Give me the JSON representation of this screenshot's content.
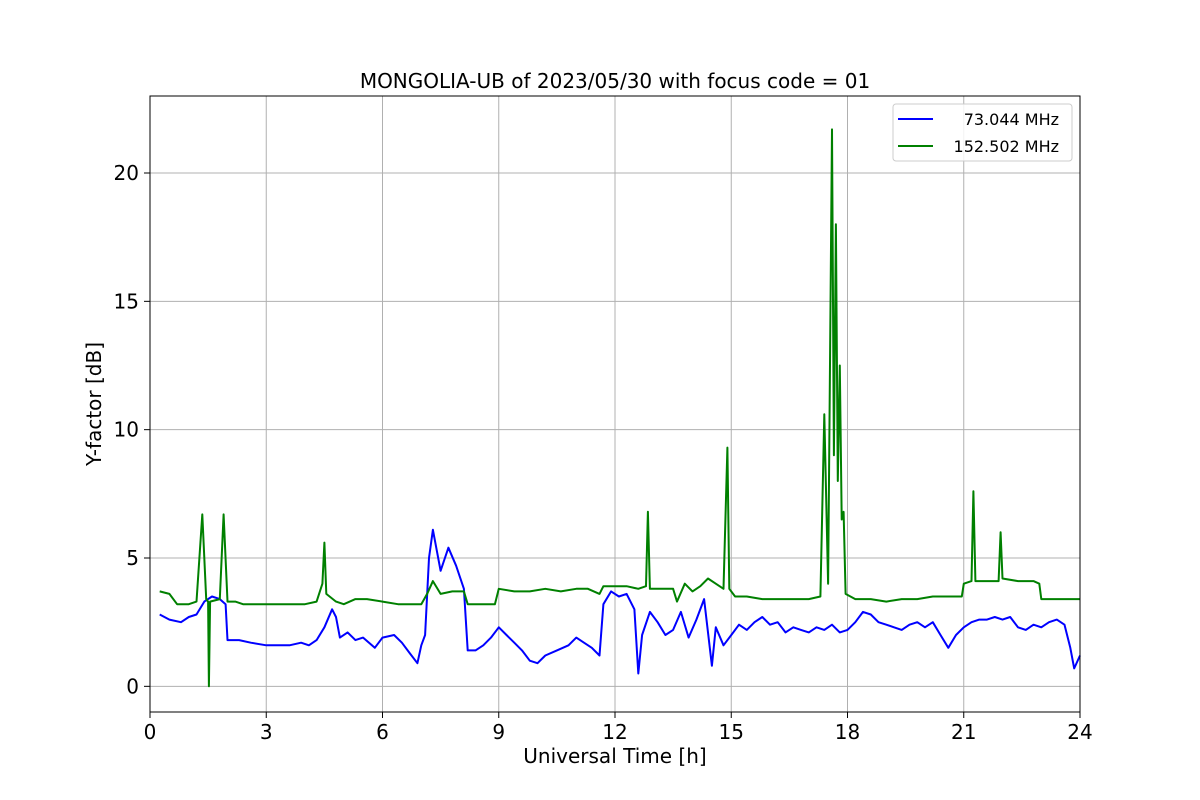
{
  "chart_data": {
    "type": "line",
    "title": "MONGOLIA-UB of 2023/05/30 with focus code = 01",
    "xlabel": "Universal Time [h]",
    "ylabel": "Y-factor [dB]",
    "xlim": [
      0,
      24
    ],
    "ylim": [
      -1,
      23
    ],
    "xticks": [
      0,
      3,
      6,
      9,
      12,
      15,
      18,
      21,
      24
    ],
    "yticks": [
      0,
      5,
      10,
      15,
      20
    ],
    "grid": true,
    "legend_position": "top-right",
    "series": [
      {
        "name": "73.044 MHz",
        "color": "#0000ff",
        "points": [
          [
            0.25,
            2.8
          ],
          [
            0.5,
            2.6
          ],
          [
            0.8,
            2.5
          ],
          [
            1.0,
            2.7
          ],
          [
            1.2,
            2.8
          ],
          [
            1.4,
            3.3
          ],
          [
            1.6,
            3.5
          ],
          [
            1.8,
            3.4
          ],
          [
            1.95,
            3.2
          ],
          [
            2.0,
            1.8
          ],
          [
            2.3,
            1.8
          ],
          [
            2.6,
            1.7
          ],
          [
            3.0,
            1.6
          ],
          [
            3.3,
            1.6
          ],
          [
            3.6,
            1.6
          ],
          [
            3.9,
            1.7
          ],
          [
            4.1,
            1.6
          ],
          [
            4.3,
            1.8
          ],
          [
            4.5,
            2.3
          ],
          [
            4.7,
            3.0
          ],
          [
            4.8,
            2.7
          ],
          [
            4.9,
            1.9
          ],
          [
            5.1,
            2.1
          ],
          [
            5.3,
            1.8
          ],
          [
            5.5,
            1.9
          ],
          [
            5.8,
            1.5
          ],
          [
            6.0,
            1.9
          ],
          [
            6.3,
            2.0
          ],
          [
            6.5,
            1.7
          ],
          [
            6.7,
            1.3
          ],
          [
            6.9,
            0.9
          ],
          [
            7.0,
            1.6
          ],
          [
            7.1,
            2.0
          ],
          [
            7.2,
            5.0
          ],
          [
            7.3,
            6.1
          ],
          [
            7.5,
            4.5
          ],
          [
            7.7,
            5.4
          ],
          [
            7.9,
            4.7
          ],
          [
            8.1,
            3.8
          ],
          [
            8.2,
            1.4
          ],
          [
            8.4,
            1.4
          ],
          [
            8.6,
            1.6
          ],
          [
            8.8,
            1.9
          ],
          [
            9.0,
            2.3
          ],
          [
            9.2,
            2.0
          ],
          [
            9.4,
            1.7
          ],
          [
            9.6,
            1.4
          ],
          [
            9.8,
            1.0
          ],
          [
            10.0,
            0.9
          ],
          [
            10.2,
            1.2
          ],
          [
            10.5,
            1.4
          ],
          [
            10.8,
            1.6
          ],
          [
            11.0,
            1.9
          ],
          [
            11.2,
            1.7
          ],
          [
            11.4,
            1.5
          ],
          [
            11.6,
            1.2
          ],
          [
            11.7,
            3.2
          ],
          [
            11.9,
            3.7
          ],
          [
            12.1,
            3.5
          ],
          [
            12.3,
            3.6
          ],
          [
            12.5,
            3.0
          ],
          [
            12.6,
            0.5
          ],
          [
            12.7,
            2.0
          ],
          [
            12.9,
            2.9
          ],
          [
            13.1,
            2.5
          ],
          [
            13.3,
            2.0
          ],
          [
            13.5,
            2.2
          ],
          [
            13.7,
            2.9
          ],
          [
            13.9,
            1.9
          ],
          [
            14.1,
            2.6
          ],
          [
            14.3,
            3.4
          ],
          [
            14.5,
            0.8
          ],
          [
            14.6,
            2.3
          ],
          [
            14.8,
            1.6
          ],
          [
            15.0,
            2.0
          ],
          [
            15.2,
            2.4
          ],
          [
            15.4,
            2.2
          ],
          [
            15.6,
            2.5
          ],
          [
            15.8,
            2.7
          ],
          [
            16.0,
            2.4
          ],
          [
            16.2,
            2.5
          ],
          [
            16.4,
            2.1
          ],
          [
            16.6,
            2.3
          ],
          [
            16.8,
            2.2
          ],
          [
            17.0,
            2.1
          ],
          [
            17.2,
            2.3
          ],
          [
            17.4,
            2.2
          ],
          [
            17.6,
            2.4
          ],
          [
            17.8,
            2.1
          ],
          [
            18.0,
            2.2
          ],
          [
            18.2,
            2.5
          ],
          [
            18.4,
            2.9
          ],
          [
            18.6,
            2.8
          ],
          [
            18.8,
            2.5
          ],
          [
            19.0,
            2.4
          ],
          [
            19.2,
            2.3
          ],
          [
            19.4,
            2.2
          ],
          [
            19.6,
            2.4
          ],
          [
            19.8,
            2.5
          ],
          [
            20.0,
            2.3
          ],
          [
            20.2,
            2.5
          ],
          [
            20.4,
            2.0
          ],
          [
            20.6,
            1.5
          ],
          [
            20.8,
            2.0
          ],
          [
            21.0,
            2.3
          ],
          [
            21.2,
            2.5
          ],
          [
            21.4,
            2.6
          ],
          [
            21.6,
            2.6
          ],
          [
            21.8,
            2.7
          ],
          [
            22.0,
            2.6
          ],
          [
            22.2,
            2.7
          ],
          [
            22.4,
            2.3
          ],
          [
            22.6,
            2.2
          ],
          [
            22.8,
            2.4
          ],
          [
            23.0,
            2.3
          ],
          [
            23.2,
            2.5
          ],
          [
            23.4,
            2.6
          ],
          [
            23.6,
            2.4
          ],
          [
            23.75,
            1.5
          ],
          [
            23.85,
            0.7
          ],
          [
            24.0,
            1.2
          ]
        ]
      },
      {
        "name": "152.502 MHz",
        "color": "#008000",
        "points": [
          [
            0.25,
            3.7
          ],
          [
            0.5,
            3.6
          ],
          [
            0.7,
            3.2
          ],
          [
            1.0,
            3.2
          ],
          [
            1.2,
            3.3
          ],
          [
            1.35,
            6.7
          ],
          [
            1.45,
            3.4
          ],
          [
            1.5,
            3.3
          ],
          [
            1.52,
            0.0
          ],
          [
            1.55,
            3.3
          ],
          [
            1.8,
            3.4
          ],
          [
            1.9,
            6.7
          ],
          [
            2.0,
            3.3
          ],
          [
            2.2,
            3.3
          ],
          [
            2.4,
            3.2
          ],
          [
            2.8,
            3.2
          ],
          [
            3.2,
            3.2
          ],
          [
            3.6,
            3.2
          ],
          [
            4.0,
            3.2
          ],
          [
            4.3,
            3.3
          ],
          [
            4.45,
            4.0
          ],
          [
            4.5,
            5.6
          ],
          [
            4.55,
            3.6
          ],
          [
            4.8,
            3.3
          ],
          [
            5.0,
            3.2
          ],
          [
            5.3,
            3.4
          ],
          [
            5.6,
            3.4
          ],
          [
            6.0,
            3.3
          ],
          [
            6.4,
            3.2
          ],
          [
            6.8,
            3.2
          ],
          [
            7.0,
            3.2
          ],
          [
            7.15,
            3.6
          ],
          [
            7.3,
            4.1
          ],
          [
            7.5,
            3.6
          ],
          [
            7.8,
            3.7
          ],
          [
            8.1,
            3.7
          ],
          [
            8.2,
            3.2
          ],
          [
            8.6,
            3.2
          ],
          [
            8.9,
            3.2
          ],
          [
            9.0,
            3.8
          ],
          [
            9.4,
            3.7
          ],
          [
            9.8,
            3.7
          ],
          [
            10.2,
            3.8
          ],
          [
            10.6,
            3.7
          ],
          [
            11.0,
            3.8
          ],
          [
            11.3,
            3.8
          ],
          [
            11.6,
            3.6
          ],
          [
            11.7,
            3.9
          ],
          [
            12.0,
            3.9
          ],
          [
            12.3,
            3.9
          ],
          [
            12.6,
            3.8
          ],
          [
            12.8,
            3.9
          ],
          [
            12.85,
            6.8
          ],
          [
            12.9,
            3.8
          ],
          [
            13.2,
            3.8
          ],
          [
            13.5,
            3.8
          ],
          [
            13.6,
            3.3
          ],
          [
            13.8,
            4.0
          ],
          [
            14.0,
            3.7
          ],
          [
            14.2,
            3.9
          ],
          [
            14.4,
            4.2
          ],
          [
            14.6,
            4.0
          ],
          [
            14.8,
            3.8
          ],
          [
            14.9,
            9.3
          ],
          [
            14.95,
            3.8
          ],
          [
            15.1,
            3.5
          ],
          [
            15.4,
            3.5
          ],
          [
            15.8,
            3.4
          ],
          [
            16.2,
            3.4
          ],
          [
            16.6,
            3.4
          ],
          [
            17.0,
            3.4
          ],
          [
            17.3,
            3.5
          ],
          [
            17.4,
            10.6
          ],
          [
            17.5,
            4.0
          ],
          [
            17.55,
            13.0
          ],
          [
            17.6,
            21.7
          ],
          [
            17.65,
            9.0
          ],
          [
            17.7,
            18.0
          ],
          [
            17.75,
            8.0
          ],
          [
            17.8,
            12.5
          ],
          [
            17.85,
            6.5
          ],
          [
            17.9,
            6.8
          ],
          [
            17.95,
            3.6
          ],
          [
            18.2,
            3.4
          ],
          [
            18.6,
            3.4
          ],
          [
            19.0,
            3.3
          ],
          [
            19.4,
            3.4
          ],
          [
            19.8,
            3.4
          ],
          [
            20.2,
            3.5
          ],
          [
            20.6,
            3.5
          ],
          [
            20.95,
            3.5
          ],
          [
            21.0,
            4.0
          ],
          [
            21.2,
            4.1
          ],
          [
            21.25,
            7.6
          ],
          [
            21.3,
            4.1
          ],
          [
            21.6,
            4.1
          ],
          [
            21.9,
            4.1
          ],
          [
            21.95,
            6.0
          ],
          [
            22.0,
            4.2
          ],
          [
            22.4,
            4.1
          ],
          [
            22.8,
            4.1
          ],
          [
            22.95,
            4.0
          ],
          [
            23.0,
            3.4
          ],
          [
            23.4,
            3.4
          ],
          [
            23.8,
            3.4
          ],
          [
            24.0,
            3.4
          ]
        ]
      }
    ]
  }
}
